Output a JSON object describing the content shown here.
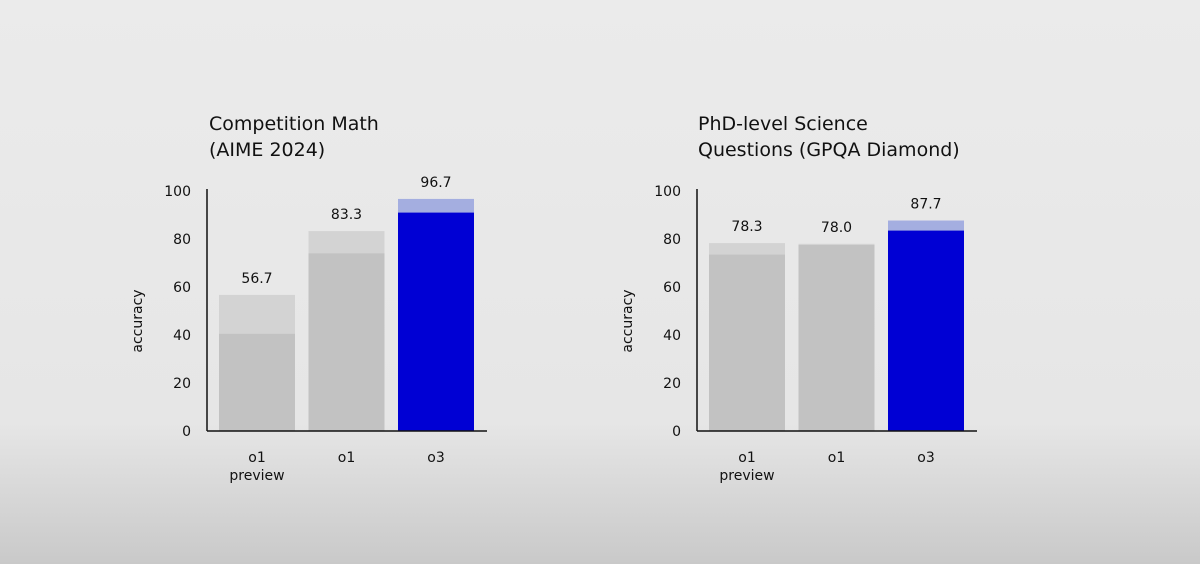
{
  "chart_data": [
    {
      "type": "bar",
      "title_lines": [
        "Competition Math",
        "(AIME 2024)"
      ],
      "ylabel": "accuracy",
      "ylim": [
        0,
        100
      ],
      "yticks": [
        0,
        20,
        40,
        60,
        80,
        100
      ],
      "categories": [
        [
          "o1",
          "preview"
        ],
        [
          "o1"
        ],
        [
          "o3"
        ]
      ],
      "values": [
        56.7,
        83.3,
        96.7
      ],
      "base_values": [
        40.5,
        74,
        91
      ],
      "value_labels": [
        "56.7",
        "83.3",
        "96.7"
      ],
      "highlight_index": 2,
      "grid": false
    },
    {
      "type": "bar",
      "title_lines": [
        "PhD-level Science",
        "Questions (GPQA Diamond)"
      ],
      "ylabel": "accuracy",
      "ylim": [
        0,
        100
      ],
      "yticks": [
        0,
        20,
        40,
        60,
        80,
        100
      ],
      "categories": [
        [
          "o1",
          "preview"
        ],
        [
          "o1"
        ],
        [
          "o3"
        ]
      ],
      "values": [
        78.3,
        78.0,
        87.7
      ],
      "base_values": [
        73.5,
        77.5,
        83.5
      ],
      "value_labels": [
        "78.3",
        "78.0",
        "87.7"
      ],
      "highlight_index": 2,
      "grid": false
    }
  ],
  "colors": {
    "bar_light": "#d3d3d3",
    "bar_dark": "#c2c2c2",
    "highlight_light": "#a4aee0",
    "highlight_dark": "#0000d4",
    "axis": "#111111"
  }
}
